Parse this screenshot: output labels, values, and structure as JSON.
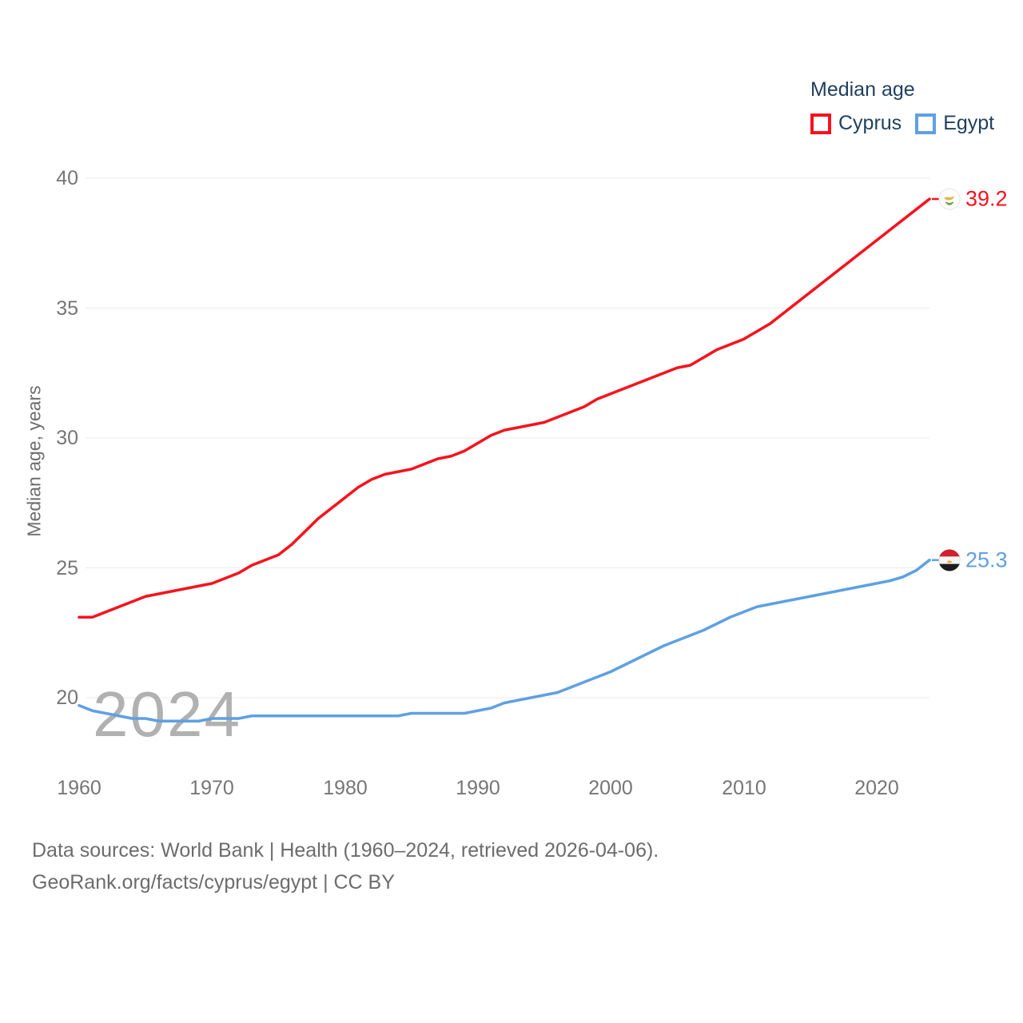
{
  "legend": {
    "title": "Median age",
    "items": [
      {
        "label": "Cyprus",
        "color": "#f5131d"
      },
      {
        "label": "Egypt",
        "color": "#5fa0e2"
      }
    ]
  },
  "y_axis": {
    "title": "Median age, years",
    "ticks": [
      "40",
      "35",
      "30",
      "25",
      "20"
    ]
  },
  "x_axis": {
    "ticks": [
      "1960",
      "1970",
      "1980",
      "1990",
      "2000",
      "2010",
      "2020"
    ]
  },
  "watermark": "2024",
  "footer": {
    "line1": "Data sources: World Bank | Health (1960–2024, retrieved 2026-04-06).",
    "line2": "GeoRank.org/facts/cyprus/egypt | CC BY"
  },
  "chart_data": {
    "type": "line",
    "title": "Median age",
    "xlabel": "",
    "ylabel": "Median age, years",
    "x_range": [
      1960,
      2024
    ],
    "ylim": [
      18.5,
      41
    ],
    "grid": "horizontal",
    "legend_position": "top-right",
    "x": [
      1960,
      1961,
      1962,
      1963,
      1964,
      1965,
      1966,
      1967,
      1968,
      1969,
      1970,
      1971,
      1972,
      1973,
      1974,
      1975,
      1976,
      1977,
      1978,
      1979,
      1980,
      1981,
      1982,
      1983,
      1984,
      1985,
      1986,
      1987,
      1988,
      1989,
      1990,
      1991,
      1992,
      1993,
      1994,
      1995,
      1996,
      1997,
      1998,
      1999,
      2000,
      2001,
      2002,
      2003,
      2004,
      2005,
      2006,
      2007,
      2008,
      2009,
      2010,
      2011,
      2012,
      2013,
      2014,
      2015,
      2016,
      2017,
      2018,
      2019,
      2020,
      2021,
      2022,
      2023,
      2024
    ],
    "series": [
      {
        "name": "Cyprus",
        "color": "#f5131d",
        "end_label": "39.2",
        "end_value": 39.2,
        "values": [
          23.1,
          23.1,
          23.3,
          23.5,
          23.7,
          23.9,
          24.0,
          24.1,
          24.2,
          24.3,
          24.4,
          24.6,
          24.8,
          25.1,
          25.3,
          25.5,
          25.9,
          26.4,
          26.9,
          27.3,
          27.7,
          28.1,
          28.4,
          28.6,
          28.7,
          28.8,
          29.0,
          29.2,
          29.3,
          29.5,
          29.8,
          30.1,
          30.3,
          30.4,
          30.5,
          30.6,
          30.8,
          31.0,
          31.2,
          31.5,
          31.7,
          31.9,
          32.1,
          32.3,
          32.5,
          32.7,
          32.8,
          33.1,
          33.4,
          33.6,
          33.8,
          34.1,
          34.4,
          34.8,
          35.2,
          35.6,
          36.0,
          36.4,
          36.8,
          37.2,
          37.6,
          38.0,
          38.4,
          38.8,
          39.2
        ]
      },
      {
        "name": "Egypt",
        "color": "#5fa0e2",
        "end_label": "25.3",
        "end_value": 25.3,
        "values": [
          19.7,
          19.5,
          19.4,
          19.3,
          19.2,
          19.2,
          19.1,
          19.1,
          19.1,
          19.1,
          19.2,
          19.2,
          19.2,
          19.3,
          19.3,
          19.3,
          19.3,
          19.3,
          19.3,
          19.3,
          19.3,
          19.3,
          19.3,
          19.3,
          19.3,
          19.4,
          19.4,
          19.4,
          19.4,
          19.4,
          19.5,
          19.6,
          19.8,
          19.9,
          20.0,
          20.1,
          20.2,
          20.4,
          20.6,
          20.8,
          21.0,
          21.25,
          21.5,
          21.75,
          22.0,
          22.2,
          22.4,
          22.6,
          22.85,
          23.1,
          23.3,
          23.5,
          23.6,
          23.7,
          23.8,
          23.9,
          24.0,
          24.1,
          24.2,
          24.3,
          24.4,
          24.5,
          24.65,
          24.9,
          25.3
        ]
      }
    ]
  }
}
